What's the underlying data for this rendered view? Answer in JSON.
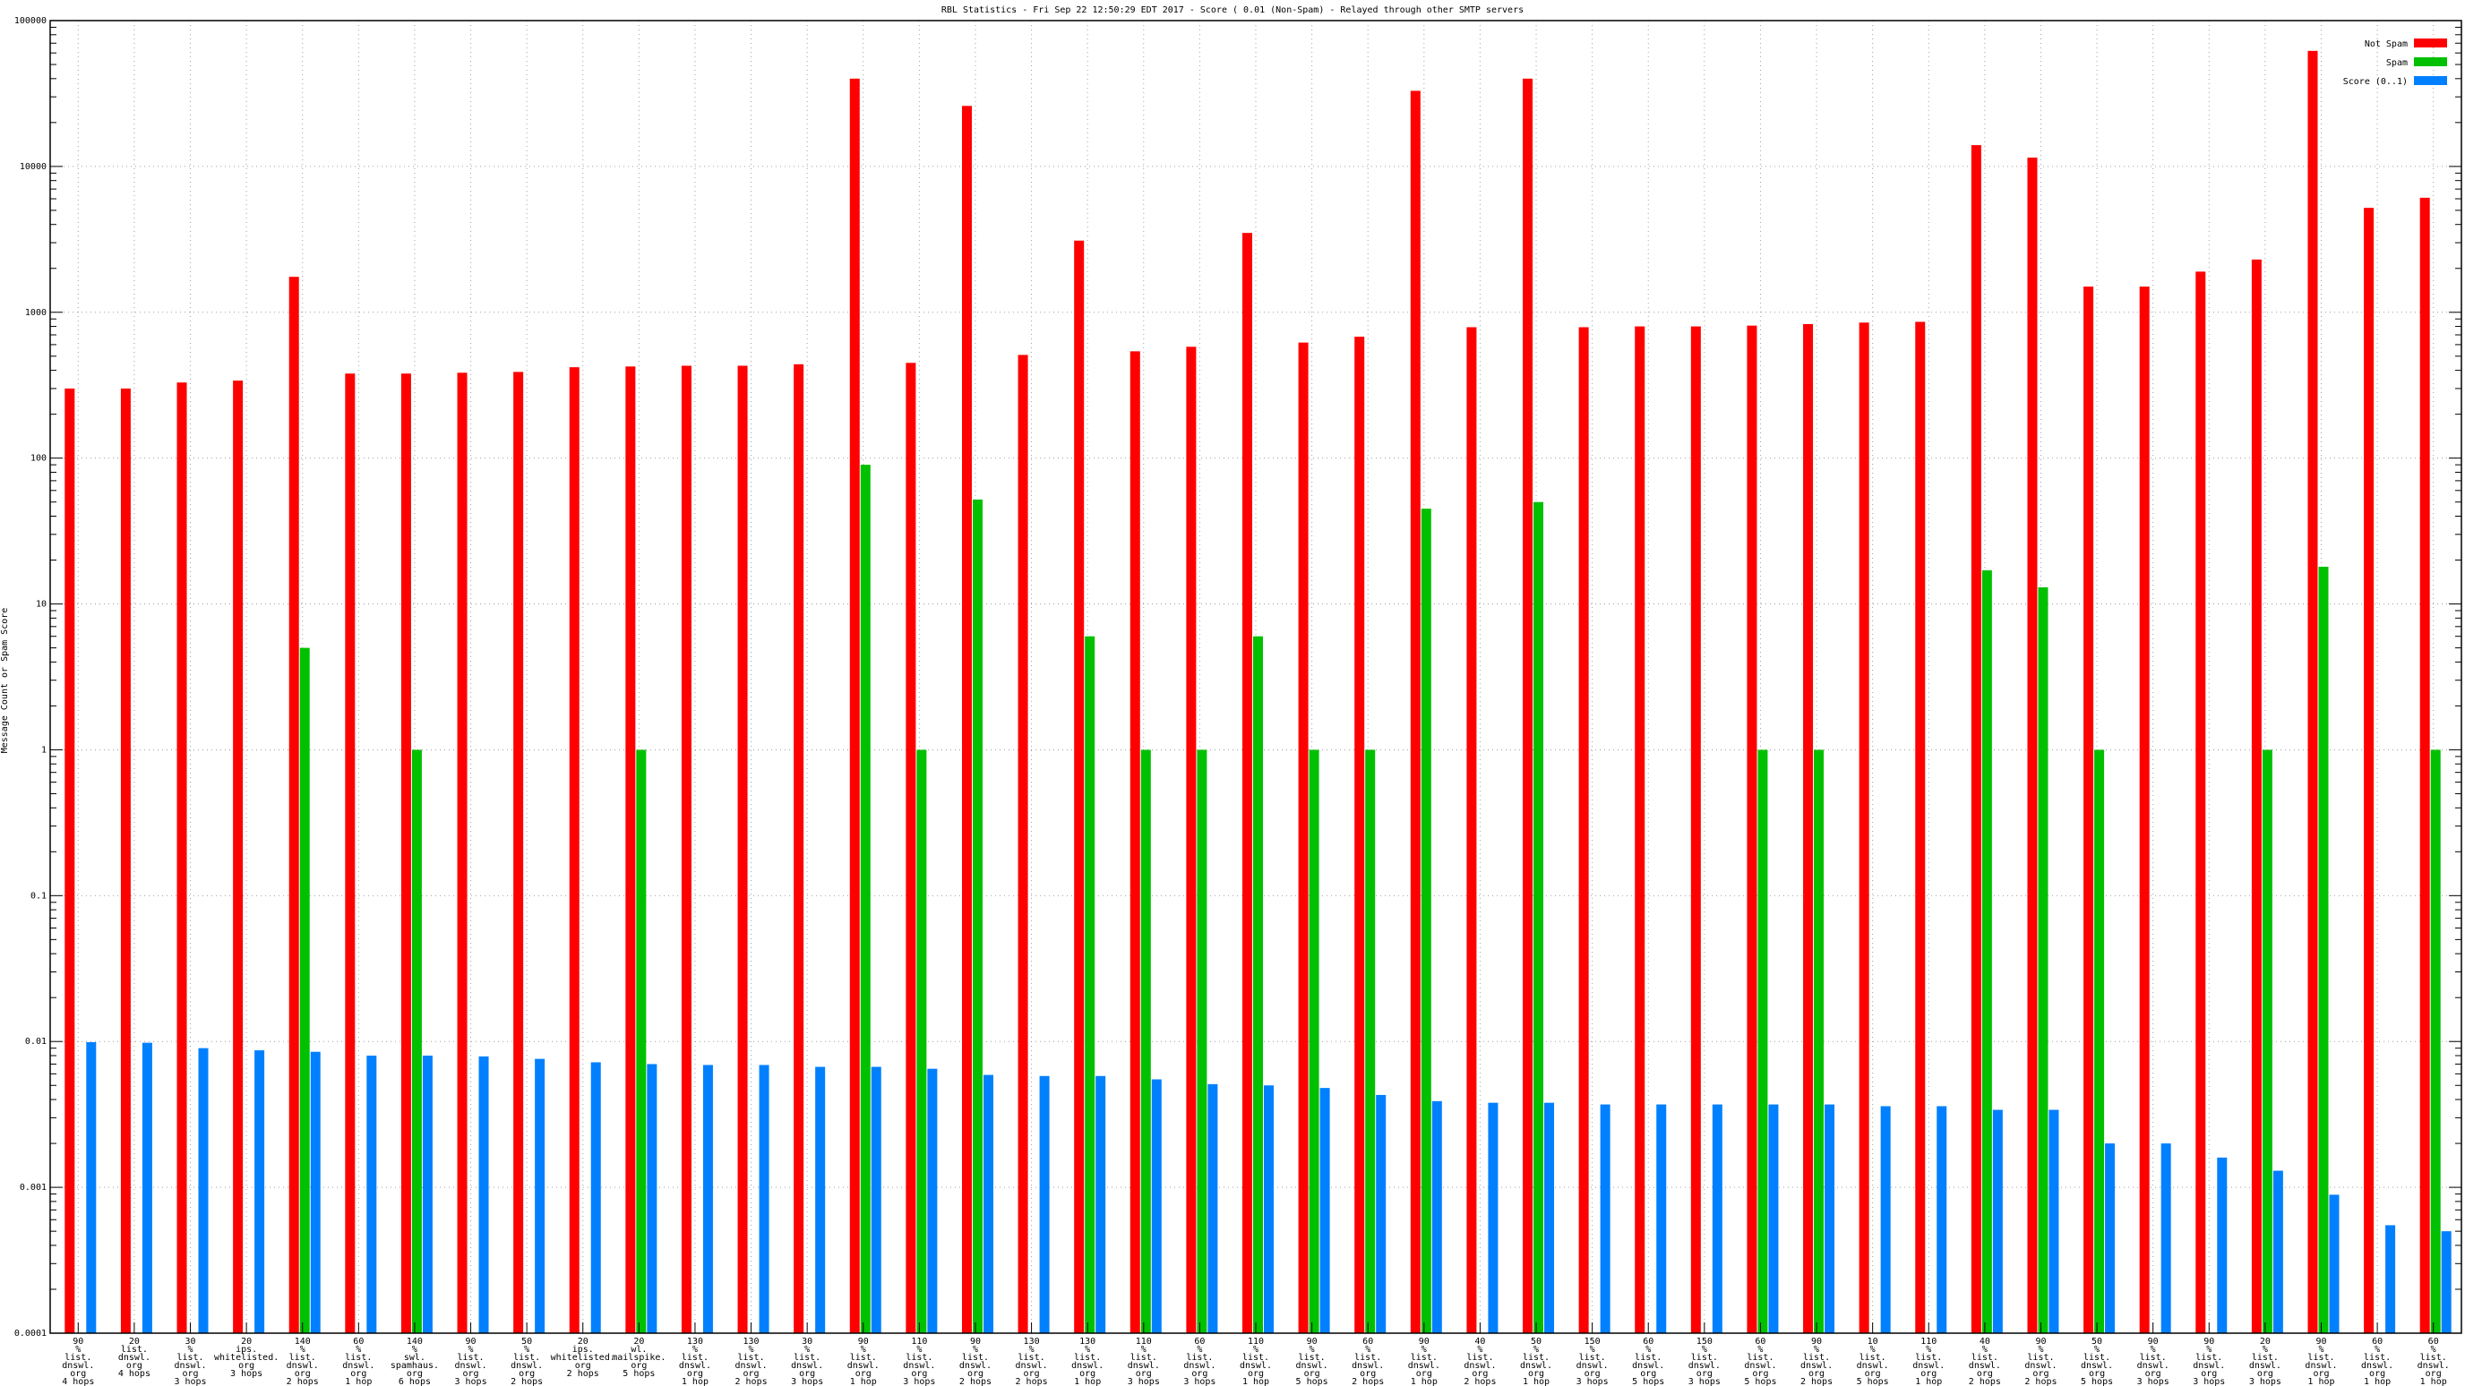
{
  "chart_data": {
    "type": "bar",
    "title": "RBL Statistics - Fri Sep 22 12:50:29 EDT 2017 - Score ( 0.01 (Non-Spam) - Relayed through other SMTP servers",
    "ylabel": "Message Count or Spam Score",
    "xlabel": "",
    "yscale": "log",
    "ylim": [
      0.0001,
      100000
    ],
    "yticks": [
      "100000",
      "10000",
      "1000",
      "100",
      "10",
      "1",
      "0.1",
      "0.01",
      "0.001",
      "0.0001"
    ],
    "grid": true,
    "legend_position": "top-right",
    "categories": [
      [
        "90",
        "%",
        "list.",
        "dnswl.",
        "org",
        "4 hops"
      ],
      [
        "20",
        "list.",
        "dnswl.",
        "org",
        "4 hops"
      ],
      [
        "30",
        "%",
        "list.",
        "dnswl.",
        "org",
        "3 hops"
      ],
      [
        "20",
        "ips.",
        "whitelisted.",
        "org",
        "3 hops"
      ],
      [
        "140",
        "%",
        "list.",
        "dnswl.",
        "org",
        "2 hops"
      ],
      [
        "60",
        "%",
        "list.",
        "dnswl.",
        "org",
        "1 hop"
      ],
      [
        "140",
        "%",
        "swl.",
        "spamhaus.",
        "org",
        "6 hops"
      ],
      [
        "90",
        "%",
        "list.",
        "dnswl.",
        "org",
        "3 hops"
      ],
      [
        "50",
        "%",
        "list.",
        "dnswl.",
        "org",
        "2 hops"
      ],
      [
        "20",
        "ips.",
        "whitelisted.",
        "org",
        "2 hops"
      ],
      [
        "20",
        "wl.",
        "mailspike.",
        "org",
        "5 hops"
      ],
      [
        "130",
        "%",
        "list.",
        "dnswl.",
        "org",
        "1 hop"
      ],
      [
        "130",
        "%",
        "list.",
        "dnswl.",
        "org",
        "2 hops"
      ],
      [
        "30",
        "%",
        "list.",
        "dnswl.",
        "org",
        "3 hops"
      ],
      [
        "90",
        "%",
        "list.",
        "dnswl.",
        "org",
        "1 hop"
      ],
      [
        "110",
        "%",
        "list.",
        "dnswl.",
        "org",
        "3 hops"
      ],
      [
        "90",
        "%",
        "list.",
        "dnswl.",
        "org",
        "2 hops"
      ],
      [
        "130",
        "%",
        "list.",
        "dnswl.",
        "org",
        "2 hops"
      ],
      [
        "130",
        "%",
        "list.",
        "dnswl.",
        "org",
        "1 hop"
      ],
      [
        "110",
        "%",
        "list.",
        "dnswl.",
        "org",
        "3 hops"
      ],
      [
        "60",
        "%",
        "list.",
        "dnswl.",
        "org",
        "3 hops"
      ],
      [
        "110",
        "%",
        "list.",
        "dnswl.",
        "org",
        "1 hop"
      ],
      [
        "90",
        "%",
        "list.",
        "dnswl.",
        "org",
        "5 hops"
      ],
      [
        "60",
        "%",
        "list.",
        "dnswl.",
        "org",
        "2 hops"
      ],
      [
        "90",
        "%",
        "list.",
        "dnswl.",
        "org",
        "1 hop"
      ],
      [
        "40",
        "%",
        "list.",
        "dnswl.",
        "org",
        "2 hops"
      ],
      [
        "50",
        "%",
        "list.",
        "dnswl.",
        "org",
        "1 hop"
      ],
      [
        "150",
        "%",
        "list.",
        "dnswl.",
        "org",
        "3 hops"
      ],
      [
        "60",
        "%",
        "list.",
        "dnswl.",
        "org",
        "5 hops"
      ],
      [
        "150",
        "%",
        "list.",
        "dnswl.",
        "org",
        "3 hops"
      ],
      [
        "60",
        "%",
        "list.",
        "dnswl.",
        "org",
        "5 hops"
      ],
      [
        "90",
        "%",
        "list.",
        "dnswl.",
        "org",
        "2 hops"
      ],
      [
        "10",
        "%",
        "list.",
        "dnswl.",
        "org",
        "5 hops"
      ],
      [
        "110",
        "%",
        "list.",
        "dnswl.",
        "org",
        "1 hop"
      ],
      [
        "40",
        "%",
        "list.",
        "dnswl.",
        "org",
        "2 hops"
      ],
      [
        "90",
        "%",
        "list.",
        "dnswl.",
        "org",
        "2 hops"
      ],
      [
        "50",
        "%",
        "list.",
        "dnswl.",
        "org",
        "5 hops"
      ],
      [
        "90",
        "%",
        "list.",
        "dnswl.",
        "org",
        "3 hops"
      ],
      [
        "90",
        "%",
        "list.",
        "dnswl.",
        "org",
        "3 hops"
      ],
      [
        "20",
        "%",
        "list.",
        "dnswl.",
        "org",
        "3 hops"
      ],
      [
        "90",
        "%",
        "list.",
        "dnswl.",
        "org",
        "1 hop"
      ],
      [
        "60",
        "%",
        "list.",
        "dnswl.",
        "org",
        "1 hop"
      ],
      [
        "60",
        "%",
        "list.",
        "dnswl.",
        "org",
        "1 hop"
      ]
    ],
    "series": [
      {
        "name": "Not Spam",
        "color": "#ff0000",
        "values": [
          300,
          300,
          330,
          340,
          1750,
          380,
          380,
          385,
          390,
          420,
          425,
          430,
          430,
          440,
          40000,
          450,
          26000,
          510,
          3100,
          540,
          580,
          3500,
          620,
          680,
          33000,
          790,
          40000,
          790,
          800,
          800,
          810,
          830,
          850,
          860,
          14000,
          11500,
          1500,
          1500,
          1900,
          2300,
          62000,
          5200,
          6100
        ]
      },
      {
        "name": "Spam",
        "color": "#00c000",
        "values": [
          null,
          null,
          null,
          null,
          5,
          null,
          1,
          null,
          null,
          null,
          1,
          null,
          null,
          null,
          90,
          1,
          52,
          null,
          6,
          1,
          1,
          6,
          1,
          1,
          45,
          null,
          50,
          null,
          null,
          null,
          1,
          1,
          null,
          null,
          17,
          13,
          1,
          null,
          null,
          1,
          18,
          null,
          1
        ]
      },
      {
        "name": "Score (0..1)",
        "color": "#0080ff",
        "values": [
          0.0099,
          0.0098,
          0.009,
          0.0087,
          0.0085,
          0.008,
          0.008,
          0.0079,
          0.0076,
          0.0072,
          0.007,
          0.0069,
          0.0069,
          0.0067,
          0.0067,
          0.0065,
          0.0059,
          0.0058,
          0.0058,
          0.0055,
          0.0051,
          0.005,
          0.0048,
          0.0043,
          0.0039,
          0.0038,
          0.0038,
          0.0037,
          0.0037,
          0.0037,
          0.0037,
          0.0037,
          0.0036,
          0.0036,
          0.0034,
          0.0034,
          0.002,
          0.002,
          0.0016,
          0.0013,
          0.00089,
          0.00055,
          0.0005
        ]
      }
    ]
  }
}
